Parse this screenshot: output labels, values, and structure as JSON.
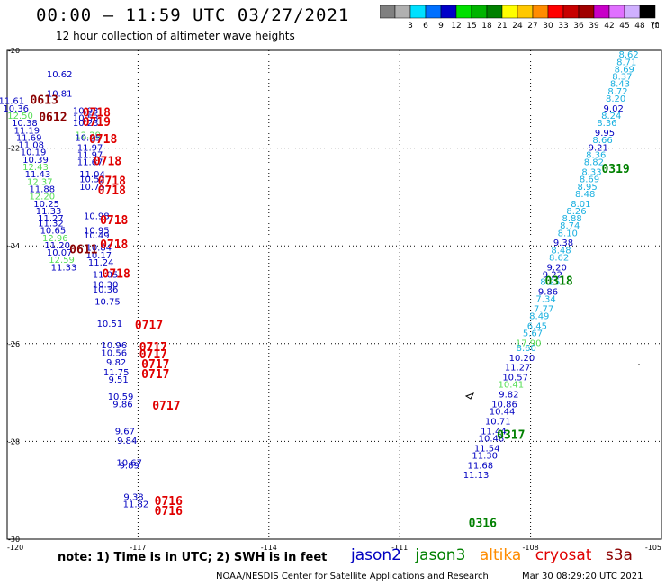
{
  "header": {
    "title": "00:00 – 11:59 UTC 03/27/2021",
    "subtitle": "12 hour collection of altimeter wave heights"
  },
  "colorbar": {
    "unit": "(ft)",
    "bins": [
      {
        "label": "",
        "color": "#808080"
      },
      {
        "label": "3",
        "color": "#b0b0b0"
      },
      {
        "label": "6",
        "color": "#00e0ff"
      },
      {
        "label": "9",
        "color": "#0070ff"
      },
      {
        "label": "12",
        "color": "#0000c8"
      },
      {
        "label": "15",
        "color": "#00e000"
      },
      {
        "label": "18",
        "color": "#00b400"
      },
      {
        "label": "21",
        "color": "#008000"
      },
      {
        "label": "24",
        "color": "#ffff00"
      },
      {
        "label": "27",
        "color": "#ffc800"
      },
      {
        "label": "30",
        "color": "#ff8c00"
      },
      {
        "label": "33",
        "color": "#ff0000"
      },
      {
        "label": "36",
        "color": "#c80000"
      },
      {
        "label": "39",
        "color": "#a00000"
      },
      {
        "label": "42",
        "color": "#c800c8"
      },
      {
        "label": "45",
        "color": "#e070ff"
      },
      {
        "label": "48",
        "color": "#d0b0ff"
      },
      {
        "label": "70",
        "color": "#000000"
      }
    ]
  },
  "axes": {
    "lat_labels": [
      "-20",
      "-22",
      "-24",
      "-26",
      "-28",
      "-30"
    ],
    "lon_labels": [
      "-120",
      "-117",
      "-114",
      "-111",
      "-108",
      "-105"
    ]
  },
  "colors": {
    "jason2": "#0000c0",
    "jason3": "#008000",
    "altika": "#ff8c00",
    "cryosat": "#e00000",
    "s3a": "#8b0000",
    "light_green": "#55dd55",
    "cyan": "#1ab0e0",
    "grid": "#000000"
  },
  "chart_data": {
    "type": "scatter",
    "title": "00:00 – 11:59 UTC 03/27/2021",
    "subtitle": "12 hour collection of altimeter wave heights",
    "xlabel": "",
    "ylabel": "",
    "xlim": [
      -120,
      -105
    ],
    "ylim": [
      -30,
      -20
    ],
    "grid": true,
    "west_track": [
      {
        "lon": -118.8,
        "lat": -20.55,
        "v": "10.62",
        "c": "blue"
      },
      {
        "lon": -118.8,
        "lat": -20.95,
        "v": "10.81",
        "c": "blue"
      },
      {
        "lon": -119.9,
        "lat": -21.1,
        "v": "11.61",
        "c": "blue"
      },
      {
        "lon": -119.8,
        "lat": -21.25,
        "v": "10.36",
        "c": "blue"
      },
      {
        "lon": -119.7,
        "lat": -21.4,
        "v": "12.50",
        "c": "lightgreen"
      },
      {
        "lon": -119.6,
        "lat": -21.55,
        "v": "10.38",
        "c": "blue"
      },
      {
        "lon": -119.55,
        "lat": -21.7,
        "v": "11.19",
        "c": "blue"
      },
      {
        "lon": -119.5,
        "lat": -21.85,
        "v": "11.69",
        "c": "blue"
      },
      {
        "lon": -119.45,
        "lat": -22.0,
        "v": "11.08",
        "c": "blue"
      },
      {
        "lon": -119.4,
        "lat": -22.15,
        "v": "10.19",
        "c": "blue"
      },
      {
        "lon": -119.35,
        "lat": -22.3,
        "v": "10.39",
        "c": "blue"
      },
      {
        "lon": -119.35,
        "lat": -22.45,
        "v": "12.43",
        "c": "lightgreen"
      },
      {
        "lon": -119.3,
        "lat": -22.6,
        "v": "11.43",
        "c": "blue"
      },
      {
        "lon": -119.25,
        "lat": -22.75,
        "v": "12.37",
        "c": "lightgreen"
      },
      {
        "lon": -119.2,
        "lat": -22.9,
        "v": "11.88",
        "c": "blue"
      },
      {
        "lon": -119.2,
        "lat": -23.05,
        "v": "12.20",
        "c": "lightgreen"
      },
      {
        "lon": -119.1,
        "lat": -23.2,
        "v": "10.25",
        "c": "blue"
      },
      {
        "lon": -119.05,
        "lat": -23.35,
        "v": "11.33",
        "c": "blue"
      },
      {
        "lon": -119.0,
        "lat": -23.5,
        "v": "11.27",
        "c": "blue"
      },
      {
        "lon": -119.0,
        "lat": -23.6,
        "v": "11.32",
        "c": "blue"
      },
      {
        "lon": -118.95,
        "lat": -23.75,
        "v": "10.65",
        "c": "blue"
      },
      {
        "lon": -118.9,
        "lat": -23.9,
        "v": "12.96",
        "c": "lightgreen"
      },
      {
        "lon": -118.85,
        "lat": -24.05,
        "v": "11.20",
        "c": "blue"
      },
      {
        "lon": -118.8,
        "lat": -24.2,
        "v": "10.07",
        "c": "blue"
      },
      {
        "lon": -118.75,
        "lat": -24.35,
        "v": "12.59",
        "c": "lightgreen"
      },
      {
        "lon": -118.7,
        "lat": -24.5,
        "v": "11.33",
        "c": "blue"
      }
    ],
    "mid_track": [
      {
        "lon": -118.2,
        "lat": -21.3,
        "v": "10.93",
        "c": "blue"
      },
      {
        "lon": -118.2,
        "lat": -21.45,
        "v": "10.53",
        "c": "blue"
      },
      {
        "lon": -118.2,
        "lat": -21.55,
        "v": "10.23",
        "c": "blue"
      },
      {
        "lon": -118.15,
        "lat": -21.8,
        "v": "12.29",
        "c": "lightgreen"
      },
      {
        "lon": -118.15,
        "lat": -21.85,
        "v": "10.25",
        "c": "blue"
      },
      {
        "lon": -118.1,
        "lat": -22.05,
        "v": "11.97",
        "c": "blue"
      },
      {
        "lon": -118.1,
        "lat": -22.2,
        "v": "11.97",
        "c": "blue"
      },
      {
        "lon": -118.1,
        "lat": -22.35,
        "v": "11.67",
        "c": "blue"
      },
      {
        "lon": -118.05,
        "lat": -22.6,
        "v": "11.04",
        "c": "blue"
      },
      {
        "lon": -118.05,
        "lat": -22.7,
        "v": "10.52",
        "c": "blue"
      },
      {
        "lon": -118.05,
        "lat": -22.85,
        "v": "10.75",
        "c": "blue"
      },
      {
        "lon": -117.95,
        "lat": -23.45,
        "v": "10.98",
        "c": "blue"
      },
      {
        "lon": -117.95,
        "lat": -23.75,
        "v": "10.95",
        "c": "blue"
      },
      {
        "lon": -117.95,
        "lat": -23.85,
        "v": "10.49",
        "c": "blue"
      },
      {
        "lon": -117.9,
        "lat": -24.1,
        "v": "10.84",
        "c": "blue"
      },
      {
        "lon": -117.9,
        "lat": -24.25,
        "v": "10.17",
        "c": "blue"
      },
      {
        "lon": -117.85,
        "lat": -24.4,
        "v": "11.24",
        "c": "blue"
      },
      {
        "lon": -117.75,
        "lat": -24.65,
        "v": "11.05",
        "c": "blue"
      },
      {
        "lon": -117.75,
        "lat": -24.85,
        "v": "10.30",
        "c": "blue"
      },
      {
        "lon": -117.75,
        "lat": -24.95,
        "v": "10.36",
        "c": "blue"
      },
      {
        "lon": -117.7,
        "lat": -25.2,
        "v": "10.75",
        "c": "blue"
      },
      {
        "lon": -117.65,
        "lat": -25.65,
        "v": "10.51",
        "c": "blue"
      },
      {
        "lon": -117.55,
        "lat": -26.1,
        "v": "10.96",
        "c": "blue"
      },
      {
        "lon": -117.55,
        "lat": -26.25,
        "v": "10.56",
        "c": "blue"
      },
      {
        "lon": -117.5,
        "lat": -26.45,
        "v": "9.82",
        "c": "blue"
      },
      {
        "lon": -117.5,
        "lat": -26.65,
        "v": "11.75",
        "c": "blue"
      },
      {
        "lon": -117.45,
        "lat": -26.8,
        "v": "9.51",
        "c": "blue"
      },
      {
        "lon": -117.4,
        "lat": -27.15,
        "v": "10.59",
        "c": "blue"
      },
      {
        "lon": -117.35,
        "lat": -27.3,
        "v": "9.86",
        "c": "blue"
      },
      {
        "lon": -117.3,
        "lat": -27.85,
        "v": "9.67",
        "c": "blue"
      },
      {
        "lon": -117.25,
        "lat": -28.05,
        "v": "9.84",
        "c": "blue"
      },
      {
        "lon": -117.2,
        "lat": -28.5,
        "v": "10.67",
        "c": "blue"
      },
      {
        "lon": -117.2,
        "lat": -28.55,
        "v": "9.89",
        "c": "blue"
      },
      {
        "lon": -117.1,
        "lat": -29.2,
        "v": "9.38",
        "c": "blue"
      },
      {
        "lon": -117.05,
        "lat": -29.35,
        "v": "11.82",
        "c": "blue"
      }
    ],
    "east_track": [
      {
        "lon": -105.75,
        "lat": -20.15,
        "v": "8.62",
        "c": "cyan"
      },
      {
        "lon": -105.8,
        "lat": -20.3,
        "v": "8.71",
        "c": "cyan"
      },
      {
        "lon": -105.85,
        "lat": -20.45,
        "v": "8.69",
        "c": "cyan"
      },
      {
        "lon": -105.9,
        "lat": -20.6,
        "v": "8.37",
        "c": "cyan"
      },
      {
        "lon": -105.95,
        "lat": -20.75,
        "v": "8.43",
        "c": "cyan"
      },
      {
        "lon": -106.0,
        "lat": -20.9,
        "v": "8.72",
        "c": "cyan"
      },
      {
        "lon": -106.05,
        "lat": -21.05,
        "v": "8.20",
        "c": "cyan"
      },
      {
        "lon": -106.1,
        "lat": -21.25,
        "v": "9.02",
        "c": "blue"
      },
      {
        "lon": -106.15,
        "lat": -21.4,
        "v": "8.24",
        "c": "cyan"
      },
      {
        "lon": -106.25,
        "lat": -21.55,
        "v": "8.36",
        "c": "cyan"
      },
      {
        "lon": -106.3,
        "lat": -21.75,
        "v": "9.95",
        "c": "blue"
      },
      {
        "lon": -106.35,
        "lat": -21.9,
        "v": "8.66",
        "c": "cyan"
      },
      {
        "lon": -106.45,
        "lat": -22.05,
        "v": "9.21",
        "c": "blue"
      },
      {
        "lon": -106.5,
        "lat": -22.2,
        "v": "8.36",
        "c": "cyan"
      },
      {
        "lon": -106.55,
        "lat": -22.35,
        "v": "8.82",
        "c": "cyan"
      },
      {
        "lon": -106.6,
        "lat": -22.55,
        "v": "8.33",
        "c": "cyan"
      },
      {
        "lon": -106.65,
        "lat": -22.7,
        "v": "8.69",
        "c": "cyan"
      },
      {
        "lon": -106.7,
        "lat": -22.85,
        "v": "8.95",
        "c": "cyan"
      },
      {
        "lon": -106.75,
        "lat": -23.0,
        "v": "8.48",
        "c": "cyan"
      },
      {
        "lon": -106.85,
        "lat": -23.2,
        "v": "8.01",
        "c": "cyan"
      },
      {
        "lon": -106.95,
        "lat": -23.35,
        "v": "8.26",
        "c": "cyan"
      },
      {
        "lon": -107.05,
        "lat": -23.5,
        "v": "8.88",
        "c": "cyan"
      },
      {
        "lon": -107.1,
        "lat": -23.65,
        "v": "8.74",
        "c": "cyan"
      },
      {
        "lon": -107.15,
        "lat": -23.8,
        "v": "8.10",
        "c": "cyan"
      },
      {
        "lon": -107.25,
        "lat": -24.0,
        "v": "9.38",
        "c": "blue"
      },
      {
        "lon": -107.3,
        "lat": -24.15,
        "v": "8.48",
        "c": "cyan"
      },
      {
        "lon": -107.35,
        "lat": -24.3,
        "v": "8.62",
        "c": "cyan"
      },
      {
        "lon": -107.4,
        "lat": -24.5,
        "v": "9.20",
        "c": "blue"
      },
      {
        "lon": -107.5,
        "lat": -24.65,
        "v": "9.22",
        "c": "blue"
      },
      {
        "lon": -107.55,
        "lat": -24.8,
        "v": "8.25",
        "c": "cyan"
      },
      {
        "lon": -107.6,
        "lat": -25.0,
        "v": "9.86",
        "c": "blue"
      },
      {
        "lon": -107.65,
        "lat": -25.15,
        "v": "7.34",
        "c": "cyan"
      },
      {
        "lon": -107.7,
        "lat": -25.35,
        "v": "7.77",
        "c": "cyan"
      },
      {
        "lon": -107.8,
        "lat": -25.5,
        "v": "8.49",
        "c": "cyan"
      },
      {
        "lon": -107.85,
        "lat": -25.7,
        "v": "6.45",
        "c": "cyan"
      },
      {
        "lon": -107.95,
        "lat": -25.85,
        "v": "5.67",
        "c": "cyan"
      },
      {
        "lon": -108.05,
        "lat": -26.05,
        "v": "17.90",
        "c": "lightgreen"
      },
      {
        "lon": -108.1,
        "lat": -26.15,
        "v": "8.60",
        "c": "cyan"
      },
      {
        "lon": -108.2,
        "lat": -26.35,
        "v": "10.20",
        "c": "blue"
      },
      {
        "lon": -108.3,
        "lat": -26.55,
        "v": "11.27",
        "c": "blue"
      },
      {
        "lon": -108.35,
        "lat": -26.75,
        "v": "10.57",
        "c": "blue"
      },
      {
        "lon": -108.45,
        "lat": -26.9,
        "v": "10.41",
        "c": "lightgreen"
      },
      {
        "lon": -108.5,
        "lat": -27.1,
        "v": "9.82",
        "c": "blue"
      },
      {
        "lon": -108.6,
        "lat": -27.3,
        "v": "10.86",
        "c": "blue"
      },
      {
        "lon": -108.65,
        "lat": -27.45,
        "v": "10.44",
        "c": "blue"
      },
      {
        "lon": -108.75,
        "lat": -27.65,
        "v": "10.71",
        "c": "blue"
      },
      {
        "lon": -108.85,
        "lat": -27.85,
        "v": "11.44",
        "c": "blue"
      },
      {
        "lon": -108.9,
        "lat": -28.0,
        "v": "10.48",
        "c": "blue"
      },
      {
        "lon": -109.0,
        "lat": -28.2,
        "v": "11.54",
        "c": "blue"
      },
      {
        "lon": -109.05,
        "lat": -28.35,
        "v": "11.30",
        "c": "blue"
      },
      {
        "lon": -109.15,
        "lat": -28.55,
        "v": "11.68",
        "c": "blue"
      },
      {
        "lon": -109.25,
        "lat": -28.75,
        "v": "11.13",
        "c": "blue"
      }
    ],
    "time_labels": [
      {
        "lon": -119.15,
        "lat": -21.1,
        "t": "0613",
        "sat": "s3a"
      },
      {
        "lon": -118.95,
        "lat": -21.45,
        "t": "0612",
        "sat": "s3a"
      },
      {
        "lon": -117.95,
        "lat": -21.35,
        "t": "0718",
        "sat": "cryosat"
      },
      {
        "lon": -117.95,
        "lat": -21.55,
        "t": "0719",
        "sat": "cryosat"
      },
      {
        "lon": -117.8,
        "lat": -21.9,
        "t": "0718",
        "sat": "cryosat"
      },
      {
        "lon": -117.7,
        "lat": -22.35,
        "t": "0718",
        "sat": "cryosat"
      },
      {
        "lon": -117.6,
        "lat": -22.75,
        "t": "0718",
        "sat": "cryosat"
      },
      {
        "lon": -117.6,
        "lat": -22.95,
        "t": "0718",
        "sat": "cryosat"
      },
      {
        "lon": -117.55,
        "lat": -23.55,
        "t": "0718",
        "sat": "cryosat"
      },
      {
        "lon": -117.55,
        "lat": -24.05,
        "t": "0718",
        "sat": "cryosat"
      },
      {
        "lon": -118.25,
        "lat": -24.15,
        "t": "0611",
        "sat": "s3a"
      },
      {
        "lon": -117.5,
        "lat": -24.65,
        "t": "0718",
        "sat": "cryosat"
      },
      {
        "lon": -116.75,
        "lat": -25.7,
        "t": "0717",
        "sat": "cryosat"
      },
      {
        "lon": -116.65,
        "lat": -26.15,
        "t": "0717",
        "sat": "cryosat"
      },
      {
        "lon": -116.65,
        "lat": -26.3,
        "t": "0717",
        "sat": "cryosat"
      },
      {
        "lon": -116.6,
        "lat": -26.5,
        "t": "0717",
        "sat": "cryosat"
      },
      {
        "lon": -116.6,
        "lat": -26.7,
        "t": "0717",
        "sat": "cryosat"
      },
      {
        "lon": -116.35,
        "lat": -27.35,
        "t": "0717",
        "sat": "cryosat"
      },
      {
        "lon": -116.3,
        "lat": -29.3,
        "t": "0716",
        "sat": "cryosat"
      },
      {
        "lon": -116.3,
        "lat": -29.5,
        "t": "0716",
        "sat": "cryosat"
      },
      {
        "lon": -106.05,
        "lat": -22.5,
        "t": "0319",
        "sat": "jason3"
      },
      {
        "lon": -107.35,
        "lat": -24.8,
        "t": "0318",
        "sat": "jason3"
      },
      {
        "lon": -108.45,
        "lat": -27.95,
        "t": "0317",
        "sat": "jason3"
      },
      {
        "lon": -109.1,
        "lat": -29.75,
        "t": "0316",
        "sat": "jason3"
      }
    ]
  },
  "footer": {
    "note": "note:  1) Time is in UTC;  2) SWH is in feet",
    "satellites": [
      {
        "name": "jason2",
        "color": "#0000c0"
      },
      {
        "name": "jason3",
        "color": "#008000"
      },
      {
        "name": "altika",
        "color": "#ff8c00"
      },
      {
        "name": "cryosat",
        "color": "#e00000"
      },
      {
        "name": "s3a",
        "color": "#8b0000"
      }
    ],
    "credit": "NOAA/NESDIS Center for Satellite Applications and Research",
    "credit_date": "Mar 30 08:29:20 UTC 2021"
  }
}
